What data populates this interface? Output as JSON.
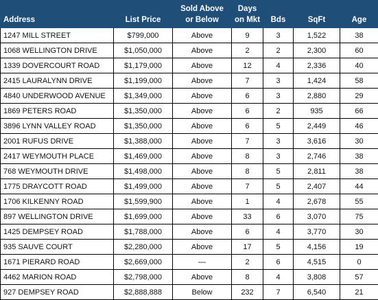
{
  "table": {
    "headers": {
      "address": "Address",
      "list_price": "List Price",
      "sold_line1": "Sold Above",
      "sold_line2": "or Below",
      "days_line1": "Days",
      "days_line2": "on Mkt",
      "bds": "Bds",
      "sqft": "SqFt",
      "age": "Age"
    },
    "rows": [
      [
        "1247 MILL STREET",
        "$799,000",
        "Above",
        "9",
        "3",
        "1,522",
        "38"
      ],
      [
        "1068 WELLINGTON DRIVE",
        "$1,050,000",
        "Above",
        "2",
        "2",
        "2,300",
        "60"
      ],
      [
        "1339 DOVERCOURT ROAD",
        "$1,179,000",
        "Above",
        "12",
        "4",
        "2,336",
        "40"
      ],
      [
        "2415 LAURALYNN DRIVE",
        "$1,199,000",
        "Above",
        "7",
        "3",
        "1,424",
        "58"
      ],
      [
        "4840 UNDERWOOD AVENUE",
        "$1,349,000",
        "Above",
        "6",
        "3",
        "2,880",
        "29"
      ],
      [
        "1869 PETERS ROAD",
        "$1,350,000",
        "Above",
        "6",
        "2",
        "935",
        "66"
      ],
      [
        "3896 LYNN VALLEY ROAD",
        "$1,350,000",
        "Above",
        "6",
        "5",
        "2,449",
        "46"
      ],
      [
        "2001 RUFUS DRIVE",
        "$1,388,000",
        "Above",
        "7",
        "3",
        "3,616",
        "30"
      ],
      [
        "2417 WEYMOUTH PLACE",
        "$1,469,000",
        "Above",
        "8",
        "3",
        "2,746",
        "38"
      ],
      [
        "768 WEYMOUTH DRIVE",
        "$1,498,000",
        "Above",
        "8",
        "5",
        "2,811",
        "38"
      ],
      [
        "1775 DRAYCOTT ROAD",
        "$1,499,000",
        "Above",
        "7",
        "5",
        "2,407",
        "44"
      ],
      [
        "1706 KILKENNY ROAD",
        "$1,599,900",
        "Above",
        "1",
        "4",
        "2,678",
        "55"
      ],
      [
        "897 WELLINGTON DRIVE",
        "$1,699,000",
        "Above",
        "33",
        "6",
        "3,070",
        "75"
      ],
      [
        "1425 DEMPSEY ROAD",
        "$1,788,000",
        "Above",
        "6",
        "4",
        "3,770",
        "30"
      ],
      [
        "935 SAUVE COURT",
        "$2,280,000",
        "Above",
        "17",
        "5",
        "4,156",
        "19"
      ],
      [
        "1671 PIERARD ROAD",
        "$2,669,000",
        "—",
        "2",
        "6",
        "4,515",
        "0"
      ],
      [
        "4462 MARION ROAD",
        "$2,798,000",
        "Above",
        "8",
        "4",
        "3,808",
        "57"
      ],
      [
        "927 DEMPSEY ROAD",
        "$2,888,888",
        "Below",
        "232",
        "7",
        "6,540",
        "21"
      ]
    ]
  },
  "colors": {
    "header_background": "#1f4e79",
    "header_text": "#ffffff",
    "grid_lines": "#000000"
  }
}
